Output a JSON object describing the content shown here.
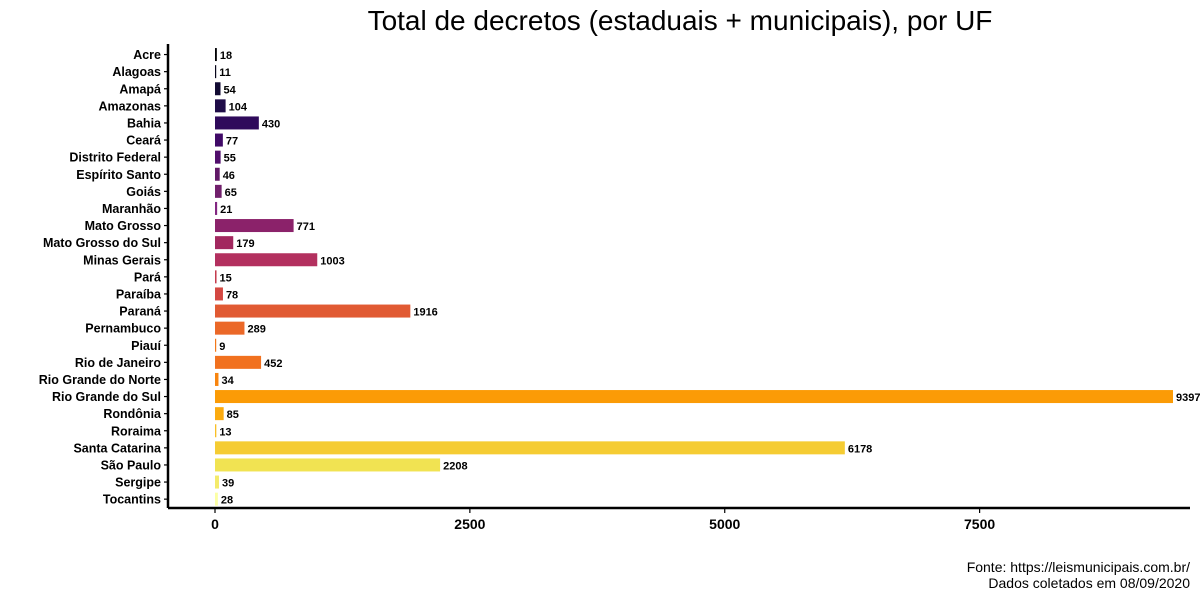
{
  "chart_data": {
    "type": "bar",
    "orientation": "horizontal",
    "title": "Total de decretos (estaduais + municipais), por UF",
    "xlabel": "",
    "ylabel": "",
    "xlim": [
      0,
      9800
    ],
    "x_ticks": [
      "0",
      "2500",
      "5000",
      "7500"
    ],
    "x_tick_values": [
      0,
      2500,
      5000,
      7500
    ],
    "grid": false,
    "legend": "none",
    "categories": [
      "Acre",
      "Alagoas",
      "Amapá",
      "Amazonas",
      "Bahia",
      "Ceará",
      "Distrito Federal",
      "Espírito Santo",
      "Goiás",
      "Maranhão",
      "Mato Grosso",
      "Mato Grosso do Sul",
      "Minas Gerais",
      "Pará",
      "Paraíba",
      "Paraná",
      "Pernambuco",
      "Piauí",
      "Rio de Janeiro",
      "Rio Grande do Norte",
      "Rio Grande do Sul",
      "Rondônia",
      "Roraima",
      "Santa Catarina",
      "São Paulo",
      "Sergipe",
      "Tocantins"
    ],
    "values": [
      18,
      11,
      54,
      104,
      430,
      77,
      55,
      46,
      65,
      21,
      771,
      179,
      1003,
      15,
      78,
      1916,
      289,
      9,
      452,
      34,
      9397,
      85,
      13,
      6178,
      2208,
      39,
      28
    ],
    "value_labels": [
      "18",
      "11",
      "54",
      "104",
      "430",
      "77",
      "55",
      "46",
      "65",
      "21",
      "771",
      "179",
      "1003",
      "15",
      "78",
      "1916",
      "289",
      "9",
      "452",
      "34",
      "9397",
      "85",
      "13",
      "6178",
      "2208",
      "39",
      "28"
    ],
    "colors": [
      "#000004",
      "#07051b",
      "#120a32",
      "#1f0c48",
      "#2f0a5b",
      "#400a67",
      "#510e6c",
      "#611967",
      "#71206c",
      "#822681",
      "#8b226a",
      "#a2285f",
      "#b3305f",
      "#c43c4e",
      "#d44842",
      "#e15a33",
      "#eb6828",
      "#f37819",
      "#f1711f",
      "#f8850f",
      "#fb9b06",
      "#fbab10",
      "#f9bf25",
      "#f5cc33",
      "#f1e352",
      "#f4eb6a",
      "#fcffa4"
    ]
  },
  "caption": {
    "line1": "Fonte: https://leismunicipais.com.br/",
    "line2": "Dados coletados em 08/09/2020"
  }
}
